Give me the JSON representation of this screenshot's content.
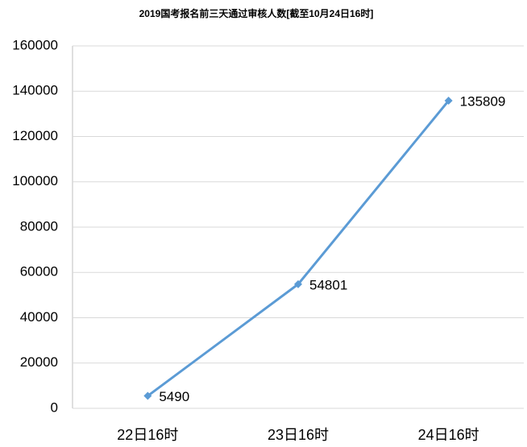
{
  "chart_data": {
    "type": "line",
    "title": "2019国考报名前三天通过审核人数[截至10月24日16时]",
    "categories": [
      "22日16时",
      "23日16时",
      "24日16时"
    ],
    "values": [
      5490,
      54801,
      135809
    ],
    "color": "#5b9bd5",
    "ylim": [
      0,
      160000
    ],
    "yticks": [
      0,
      20000,
      40000,
      60000,
      80000,
      100000,
      120000,
      140000,
      160000
    ],
    "grid": true
  }
}
